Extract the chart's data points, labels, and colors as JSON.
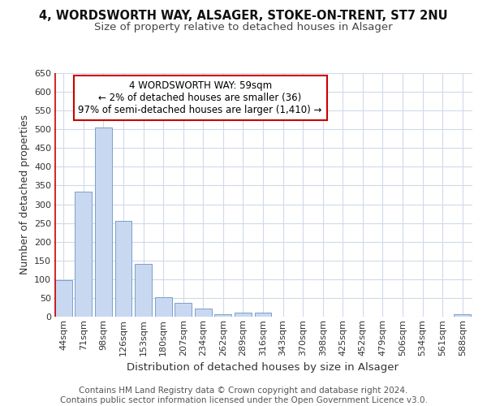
{
  "title_line1": "4, WORDSWORTH WAY, ALSAGER, STOKE-ON-TRENT, ST7 2NU",
  "title_line2": "Size of property relative to detached houses in Alsager",
  "xlabel": "Distribution of detached houses by size in Alsager",
  "ylabel": "Number of detached properties",
  "categories": [
    "44sqm",
    "71sqm",
    "98sqm",
    "126sqm",
    "153sqm",
    "180sqm",
    "207sqm",
    "234sqm",
    "262sqm",
    "289sqm",
    "316sqm",
    "343sqm",
    "370sqm",
    "398sqm",
    "425sqm",
    "452sqm",
    "479sqm",
    "506sqm",
    "534sqm",
    "561sqm",
    "588sqm"
  ],
  "values": [
    97,
    334,
    504,
    255,
    140,
    53,
    37,
    21,
    7,
    11,
    11,
    0,
    0,
    0,
    0,
    0,
    0,
    0,
    0,
    0,
    6
  ],
  "bar_color": "#c8d8f0",
  "bar_edge_color": "#7aa0cc",
  "vline_color": "#cc0000",
  "annotation_text": "4 WORDSWORTH WAY: 59sqm\n← 2% of detached houses are smaller (36)\n97% of semi-detached houses are larger (1,410) →",
  "annotation_box_color": "#ffffff",
  "annotation_box_edge_color": "#cc0000",
  "ylim": [
    0,
    650
  ],
  "yticks": [
    0,
    50,
    100,
    150,
    200,
    250,
    300,
    350,
    400,
    450,
    500,
    550,
    600,
    650
  ],
  "footnote": "Contains HM Land Registry data © Crown copyright and database right 2024.\nContains public sector information licensed under the Open Government Licence v3.0.",
  "background_color": "#ffffff",
  "grid_color": "#d0daea",
  "title_fontsize": 10.5,
  "subtitle_fontsize": 9.5,
  "axis_label_fontsize": 9,
  "tick_fontsize": 8,
  "annotation_fontsize": 8.5,
  "footnote_fontsize": 7.5
}
